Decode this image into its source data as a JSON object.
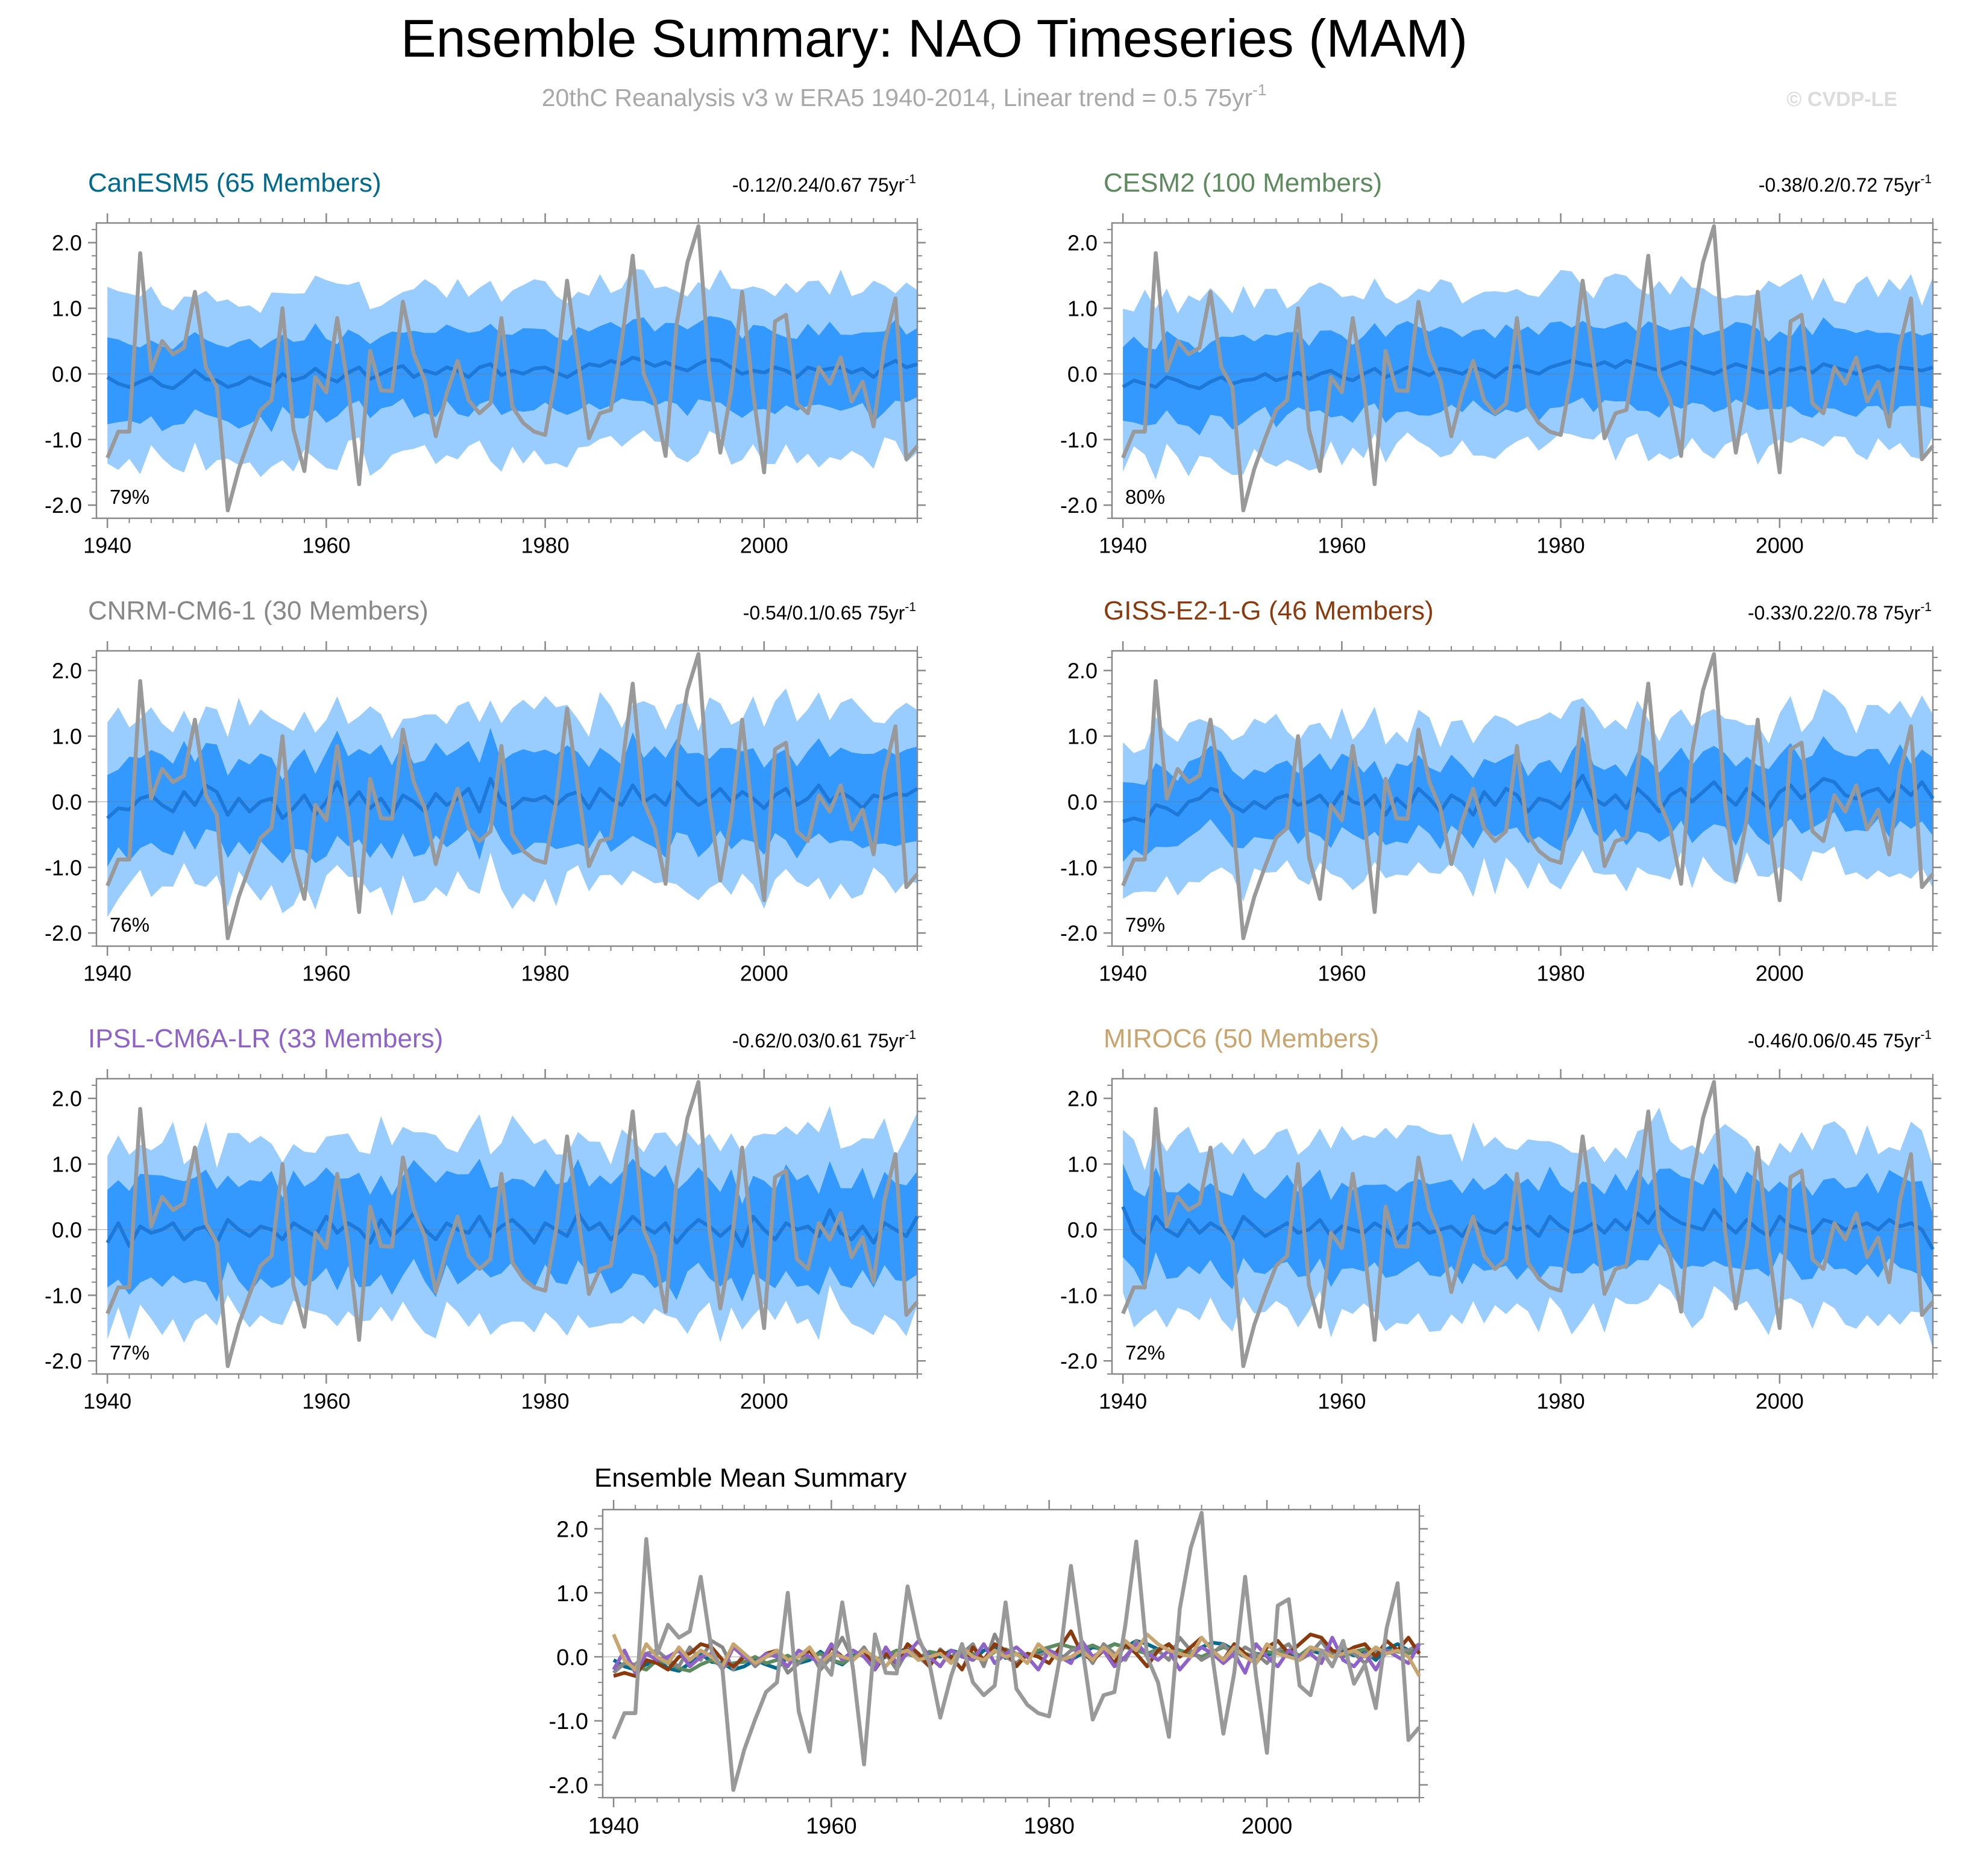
{
  "title": "Ensemble Summary: NAO Timeseries (MAM)",
  "subtitle": "20thC Reanalysis v3 w ERA5 1940-2014, Linear trend = 0.5 75yr",
  "subtitle_sup": "-1",
  "watermark": "© CVDP-LE",
  "colors": {
    "outer_band": "#99CCFF",
    "inner_band": "#3399FF",
    "ensemble_mean_line": "#1E78D8",
    "observations": "#999999",
    "axis": "#888888",
    "text": "#000000"
  },
  "chart_data": {
    "x_axis": {
      "range": [
        1939,
        2014
      ],
      "ticks": [
        1940,
        1960,
        1980,
        2000
      ],
      "minor_step": 2
    },
    "y_axis": {
      "range": [
        -2.2,
        2.3
      ],
      "ticks": [
        2.0,
        1.0,
        0.0,
        -1.0,
        -2.0
      ],
      "tick_labels": [
        "2.0",
        "1.0",
        "0.0",
        "-1.0",
        "-2.0"
      ],
      "minor_step": 0.2
    },
    "observations": {
      "name": "20thC Reanalysis v3 w ERA5",
      "years": [
        1940,
        2014
      ],
      "values": [
        -1.28,
        -0.88,
        -0.88,
        1.84,
        0.05,
        0.5,
        0.3,
        0.4,
        1.25,
        0.1,
        -0.2,
        -2.08,
        -1.45,
        -0.98,
        -0.55,
        -0.4,
        1.0,
        -0.85,
        -1.48,
        -0.05,
        -0.28,
        0.85,
        -0.2,
        -1.68,
        0.35,
        -0.25,
        -0.26,
        1.1,
        0.3,
        -0.1,
        -0.95,
        -0.3,
        0.2,
        -0.4,
        -0.6,
        -0.45,
        0.85,
        -0.5,
        -0.75,
        -0.88,
        -0.93,
        0.0,
        1.42,
        0.2,
        -0.98,
        -0.6,
        -0.55,
        0.5,
        1.8,
        0.0,
        -0.4,
        -1.25,
        0.75,
        1.7,
        2.25,
        0.0,
        -1.2,
        -0.25,
        1.25,
        -0.3,
        -1.5,
        0.8,
        0.9,
        -0.45,
        -0.6,
        0.1,
        -0.15,
        0.25,
        -0.42,
        -0.12,
        -0.8,
        0.45,
        1.15,
        -1.3,
        -1.1
      ]
    },
    "panels": [
      {
        "model": "CanESM5",
        "label": "CanESM5 (65 Members)",
        "color": "#006B8F",
        "trend_label": "-0.12/0.24/0.67 75yr",
        "trend_sup": "-1",
        "trend_range": [
          -0.12,
          0.24,
          0.67
        ],
        "percent_label": "79%",
        "band_width": [
          0.6,
          1.25
        ],
        "ensemble_mean": [
          -0.05,
          -0.15,
          -0.2,
          -0.12,
          -0.05,
          -0.18,
          -0.22,
          -0.1,
          0.05,
          -0.08,
          -0.1,
          -0.2,
          -0.15,
          -0.05,
          -0.12,
          -0.18,
          0.0,
          -0.1,
          -0.05,
          0.08,
          -0.05,
          -0.12,
          0.02,
          0.1,
          -0.08,
          0.0,
          0.08,
          0.12,
          -0.05,
          0.05,
          0.0,
          0.1,
          0.05,
          -0.05,
          0.1,
          0.15,
          -0.02,
          0.05,
          0.0,
          0.08,
          0.1,
          0.02,
          -0.05,
          0.05,
          0.15,
          0.12,
          0.2,
          0.15,
          0.25,
          0.2,
          0.12,
          0.18,
          0.1,
          0.05,
          0.15,
          0.22,
          0.2,
          0.1,
          0.0,
          0.05,
          0.02,
          0.1,
          0.05,
          -0.05,
          0.1,
          0.05,
          0.08,
          0.1,
          0.02,
          0.08,
          -0.05,
          0.12,
          0.2,
          0.1,
          0.15
        ]
      },
      {
        "model": "CESM2",
        "label": "CESM2 (100 Members)",
        "color": "#5E8B5E",
        "trend_label": "-0.38/0.2/0.72 75yr",
        "trend_sup": "-1",
        "trend_range": [
          -0.38,
          0.2,
          0.72
        ],
        "percent_label": "80%",
        "band_width": [
          0.6,
          1.2
        ],
        "ensemble_mean": [
          -0.2,
          -0.1,
          -0.15,
          -0.2,
          -0.05,
          -0.1,
          -0.18,
          -0.22,
          -0.12,
          -0.05,
          -0.15,
          -0.1,
          -0.08,
          0.0,
          -0.1,
          -0.05,
          0.02,
          -0.08,
          0.0,
          0.05,
          -0.05,
          -0.1,
          0.0,
          0.08,
          -0.05,
          0.02,
          0.1,
          0.05,
          -0.02,
          0.08,
          0.05,
          0.0,
          0.1,
          0.05,
          -0.05,
          0.08,
          0.12,
          0.05,
          0.0,
          0.1,
          0.15,
          0.2,
          0.15,
          0.12,
          0.18,
          0.1,
          0.2,
          0.15,
          0.1,
          0.05,
          0.12,
          0.18,
          0.1,
          0.05,
          0.0,
          0.08,
          0.15,
          0.1,
          0.05,
          0.0,
          0.08,
          0.05,
          0.1,
          0.02,
          0.15,
          0.1,
          0.05,
          0.0,
          0.08,
          0.12,
          0.05,
          0.1,
          0.08,
          0.05,
          0.1
        ]
      },
      {
        "model": "CNRM-CM6-1",
        "label": "CNRM-CM6-1 (30 Members)",
        "color": "#888888",
        "trend_label": "-0.54/0.1/0.65 75yr",
        "trend_sup": "-1",
        "trend_range": [
          -0.54,
          0.1,
          0.65
        ],
        "percent_label": "76%",
        "band_width": [
          0.7,
          1.3
        ],
        "ensemble_mean": [
          -0.25,
          -0.1,
          -0.12,
          0.05,
          0.1,
          -0.05,
          -0.15,
          0.15,
          -0.05,
          0.25,
          0.15,
          -0.2,
          0.05,
          -0.15,
          0.0,
          0.05,
          -0.25,
          -0.1,
          0.1,
          -0.2,
          0.0,
          0.3,
          -0.05,
          0.15,
          -0.1,
          0.05,
          -0.2,
          0.1,
          0.0,
          -0.15,
          0.12,
          -0.05,
          0.05,
          0.2,
          -0.15,
          0.35,
          0.0,
          -0.1,
          0.05,
          0.02,
          0.08,
          -0.05,
          0.1,
          0.15,
          -0.1,
          0.2,
          0.05,
          -0.05,
          0.25,
          0.0,
          0.1,
          -0.05,
          0.3,
          0.1,
          -0.05,
          0.05,
          0.2,
          0.0,
          0.15,
          0.05,
          -0.1,
          0.1,
          0.2,
          -0.05,
          0.05,
          0.25,
          0.0,
          0.15,
          0.05,
          -0.1,
          0.1,
          0.05,
          0.12,
          0.1,
          0.2
        ]
      },
      {
        "model": "GISS-E2-1-G",
        "label": "GISS-E2-1-G (46 Members)",
        "color": "#8B3A0E",
        "trend_label": "-0.33/0.22/0.78 75yr",
        "trend_sup": "-1",
        "trend_range": [
          -0.33,
          0.22,
          0.78
        ],
        "percent_label": "79%",
        "band_width": [
          0.55,
          1.15
        ],
        "ensemble_mean": [
          -0.3,
          -0.25,
          -0.3,
          -0.05,
          -0.1,
          -0.2,
          0.0,
          0.05,
          0.2,
          0.15,
          -0.05,
          -0.15,
          0.0,
          -0.1,
          0.05,
          0.1,
          -0.05,
          0.0,
          0.1,
          -0.1,
          0.15,
          0.0,
          -0.05,
          0.1,
          -0.2,
          0.05,
          -0.1,
          0.2,
          0.05,
          -0.15,
          0.1,
          0.0,
          -0.2,
          0.15,
          -0.05,
          0.2,
          0.1,
          -0.15,
          0.05,
          0.0,
          -0.1,
          0.15,
          0.4,
          0.05,
          -0.05,
          0.1,
          -0.1,
          0.2,
          0.05,
          -0.15,
          0.1,
          0.2,
          0.0,
          0.15,
          0.3,
          0.1,
          -0.05,
          0.2,
          0.05,
          -0.1,
          0.15,
          0.25,
          0.05,
          0.2,
          0.35,
          0.3,
          0.1,
          0.05,
          0.15,
          0.2,
          0.0,
          0.25,
          0.1,
          0.3,
          0.05
        ]
      },
      {
        "model": "IPSL-CM6A-LR",
        "label": "IPSL-CM6A-LR (33 Members)",
        "color": "#8E62C8",
        "trend_label": "-0.62/0.03/0.61 75yr",
        "trend_sup": "-1",
        "trend_range": [
          -0.62,
          0.03,
          0.61
        ],
        "percent_label": "77%",
        "band_width": [
          0.75,
          1.35
        ],
        "ensemble_mean": [
          -0.2,
          0.1,
          -0.25,
          0.05,
          -0.05,
          0.0,
          0.1,
          -0.15,
          0.0,
          0.05,
          -0.2,
          0.15,
          0.0,
          -0.1,
          0.05,
          0.0,
          -0.15,
          0.1,
          0.0,
          -0.1,
          0.2,
          -0.05,
          0.1,
          0.0,
          -0.2,
          0.15,
          -0.1,
          0.05,
          0.25,
          0.0,
          -0.15,
          0.1,
          0.0,
          -0.05,
          0.2,
          -0.1,
          0.05,
          0.15,
          0.0,
          -0.2,
          0.1,
          0.0,
          -0.1,
          0.25,
          0.0,
          0.1,
          -0.15,
          0.0,
          0.2,
          0.05,
          -0.05,
          0.1,
          -0.2,
          0.0,
          0.15,
          0.05,
          -0.1,
          0.05,
          -0.25,
          0.2,
          0.0,
          -0.15,
          0.1,
          0.0,
          0.05,
          -0.1,
          0.3,
          -0.05,
          -0.15,
          0.05,
          -0.2,
          0.1,
          0.0,
          -0.1,
          0.2
        ]
      },
      {
        "model": "MIROC6",
        "label": "MIROC6 (50 Members)",
        "color": "#C8A46E",
        "trend_label": "-0.46/0.06/0.45 75yr",
        "trend_sup": "-1",
        "trend_range": [
          -0.46,
          0.06,
          0.45
        ],
        "percent_label": "72%",
        "band_width": [
          0.65,
          1.3
        ],
        "ensemble_mean": [
          0.35,
          -0.05,
          -0.2,
          0.2,
          0.0,
          -0.1,
          0.15,
          -0.05,
          0.1,
          0.0,
          -0.15,
          0.2,
          0.05,
          -0.1,
          0.0,
          0.1,
          -0.05,
          0.0,
          0.15,
          -0.1,
          0.05,
          0.0,
          -0.05,
          0.1,
          0.0,
          -0.15,
          0.05,
          0.1,
          -0.05,
          0.0,
          0.05,
          -0.1,
          0.15,
          0.0,
          -0.05,
          0.1,
          0.0,
          0.05,
          -0.1,
          0.2,
          0.05,
          -0.05,
          0.0,
          0.1,
          -0.05,
          0.15,
          0.0,
          0.25,
          0.1,
          0.35,
          0.2,
          0.1,
          0.05,
          0.0,
          0.3,
          0.1,
          -0.05,
          0.15,
          0.0,
          -0.1,
          0.2,
          0.05,
          0.0,
          -0.05,
          0.15,
          0.1,
          0.0,
          0.05,
          0.1,
          0.0,
          0.15,
          0.05,
          0.1,
          0.0,
          -0.3
        ]
      }
    ],
    "summary": {
      "title": "Ensemble Mean Summary",
      "series": [
        "CanESM5",
        "CESM2",
        "CNRM-CM6-1",
        "GISS-E2-1-G",
        "IPSL-CM6A-LR",
        "MIROC6",
        "20thC Reanalysis v3 w ERA5"
      ]
    }
  }
}
